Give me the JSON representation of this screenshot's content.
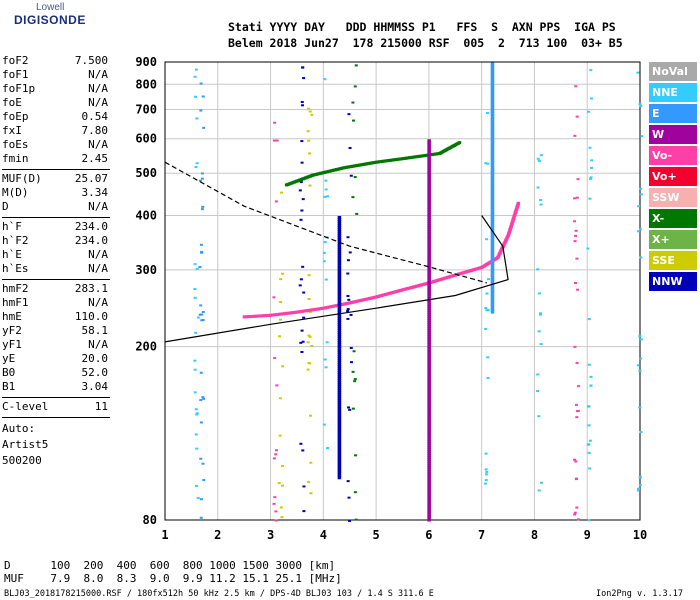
{
  "logo": {
    "top_text": "Lowell",
    "main_text": "DIGISONDE"
  },
  "header": {
    "line1": "Stati YYYY DAY   DDD HHMMSS P1   FFS  S  AXN PPS  IGA PS",
    "line2": "Belem 2018 Jun27  178 215000 RSF  005  2  713 100  03+ B5"
  },
  "params": [
    {
      "label": "foF2",
      "value": "7.500"
    },
    {
      "label": "foF1",
      "value": "N/A"
    },
    {
      "label": "foF1p",
      "value": "N/A"
    },
    {
      "label": "foE",
      "value": "N/A"
    },
    {
      "label": "foEp",
      "value": "0.54"
    },
    {
      "label": "fxI",
      "value": "7.80"
    },
    {
      "label": "foEs",
      "value": "N/A"
    },
    {
      "label": "fmin",
      "value": "2.45"
    },
    {
      "label": "MUF(D)",
      "value": "25.07"
    },
    {
      "label": "M(D)",
      "value": "3.34"
    },
    {
      "label": "D",
      "value": "N/A"
    },
    {
      "label": "h`F",
      "value": "234.0"
    },
    {
      "label": "h`F2",
      "value": "234.0"
    },
    {
      "label": "h`E",
      "value": "N/A"
    },
    {
      "label": "h`Es",
      "value": "N/A"
    },
    {
      "label": "hmF2",
      "value": "283.1"
    },
    {
      "label": "hmF1",
      "value": "N/A"
    },
    {
      "label": "hmE",
      "value": "110.0"
    },
    {
      "label": "yF2",
      "value": "58.1"
    },
    {
      "label": "yF1",
      "value": "N/A"
    },
    {
      "label": "yE",
      "value": "20.0"
    },
    {
      "label": "B0",
      "value": "52.0"
    },
    {
      "label": "B1",
      "value": "3.04"
    },
    {
      "label": "C-level",
      "value": "11"
    }
  ],
  "auto": {
    "line1": "Auto:",
    "line2": "Artist5",
    "line3": "500200"
  },
  "footer": {
    "d_row": "D      100  200  400  600  800 1000 1500 3000 [km]",
    "muf_row": "MUF    7.9  8.0  8.3  9.0  9.9 11.2 15.1 25.1 [MHz]",
    "file_line": "BLJ03_2018178215000.RSF / 180fx512h 50 kHz 2.5 km / DPS-4D BLJ03 103 / 1.4 S 311.6 E",
    "version": "Ion2Png v. 1.3.17"
  },
  "legend": [
    {
      "label": "NoVal",
      "color": "#a9a9a9"
    },
    {
      "label": "NNE",
      "color": "#33ccff"
    },
    {
      "label": "E",
      "color": "#3399ff"
    },
    {
      "label": "W",
      "color": "#a0029e"
    },
    {
      "label": "Vo-",
      "color": "#ff3fa8"
    },
    {
      "label": "Vo+",
      "color": "#f2002e"
    },
    {
      "label": "SSW",
      "color": "#f6b0b0"
    },
    {
      "label": "X-",
      "color": "#007700"
    },
    {
      "label": "X+",
      "color": "#6db348"
    },
    {
      "label": "SSE",
      "color": "#cccc00"
    },
    {
      "label": "NNW",
      "color": "#0000bb"
    }
  ],
  "chart_data": {
    "type": "scatter",
    "title": "",
    "xlabel": "",
    "ylabel": "",
    "xlim": [
      1,
      10
    ],
    "ylim": [
      80,
      900
    ],
    "y_scale": "log",
    "x_ticks": [
      1,
      2,
      3,
      4,
      5,
      6,
      7,
      8,
      9,
      10
    ],
    "y_ticks": [
      80,
      200,
      300,
      400,
      500,
      600,
      700,
      800,
      900
    ],
    "grid": true,
    "legend_position": "right",
    "series": [
      {
        "name": "Vo-",
        "points": [
          [
            2.5,
            234
          ],
          [
            3.0,
            236
          ],
          [
            3.5,
            240
          ],
          [
            4.0,
            245
          ],
          [
            4.5,
            252
          ],
          [
            5.0,
            260
          ],
          [
            5.5,
            270
          ],
          [
            6.0,
            280
          ],
          [
            6.5,
            292
          ],
          [
            7.0,
            304
          ],
          [
            7.3,
            320
          ],
          [
            7.5,
            360
          ],
          [
            7.7,
            430
          ]
        ]
      },
      {
        "name": "X-",
        "points": [
          [
            3.3,
            470
          ],
          [
            3.8,
            495
          ],
          [
            4.4,
            515
          ],
          [
            5.0,
            530
          ],
          [
            5.5,
            540
          ],
          [
            6.2,
            555
          ],
          [
            6.6,
            590
          ]
        ]
      },
      {
        "name": "E",
        "points": [
          [
            7.2,
            240
          ],
          [
            7.2,
            300
          ],
          [
            7.2,
            400
          ],
          [
            7.2,
            500
          ],
          [
            7.2,
            600
          ],
          [
            7.2,
            700
          ],
          [
            7.2,
            800
          ],
          [
            7.2,
            900
          ]
        ]
      },
      {
        "name": "W",
        "points": [
          [
            6.0,
            80
          ],
          [
            6.0,
            150
          ],
          [
            6.0,
            250
          ],
          [
            6.0,
            400
          ],
          [
            6.0,
            600
          ]
        ]
      },
      {
        "name": "NNW",
        "points": [
          [
            4.3,
            100
          ],
          [
            4.3,
            200
          ],
          [
            4.3,
            300
          ],
          [
            4.3,
            400
          ]
        ]
      }
    ],
    "profile_curves": {
      "solid": [
        [
          1.0,
          205
        ],
        [
          3.0,
          225
        ],
        [
          5.0,
          245
        ],
        [
          6.5,
          262
        ],
        [
          7.5,
          285
        ],
        [
          7.4,
          340
        ],
        [
          7.0,
          400
        ]
      ],
      "dashed": [
        [
          1.0,
          530
        ],
        [
          2.5,
          420
        ],
        [
          4.5,
          340
        ],
        [
          6.0,
          305
        ],
        [
          7.1,
          280
        ]
      ]
    }
  }
}
